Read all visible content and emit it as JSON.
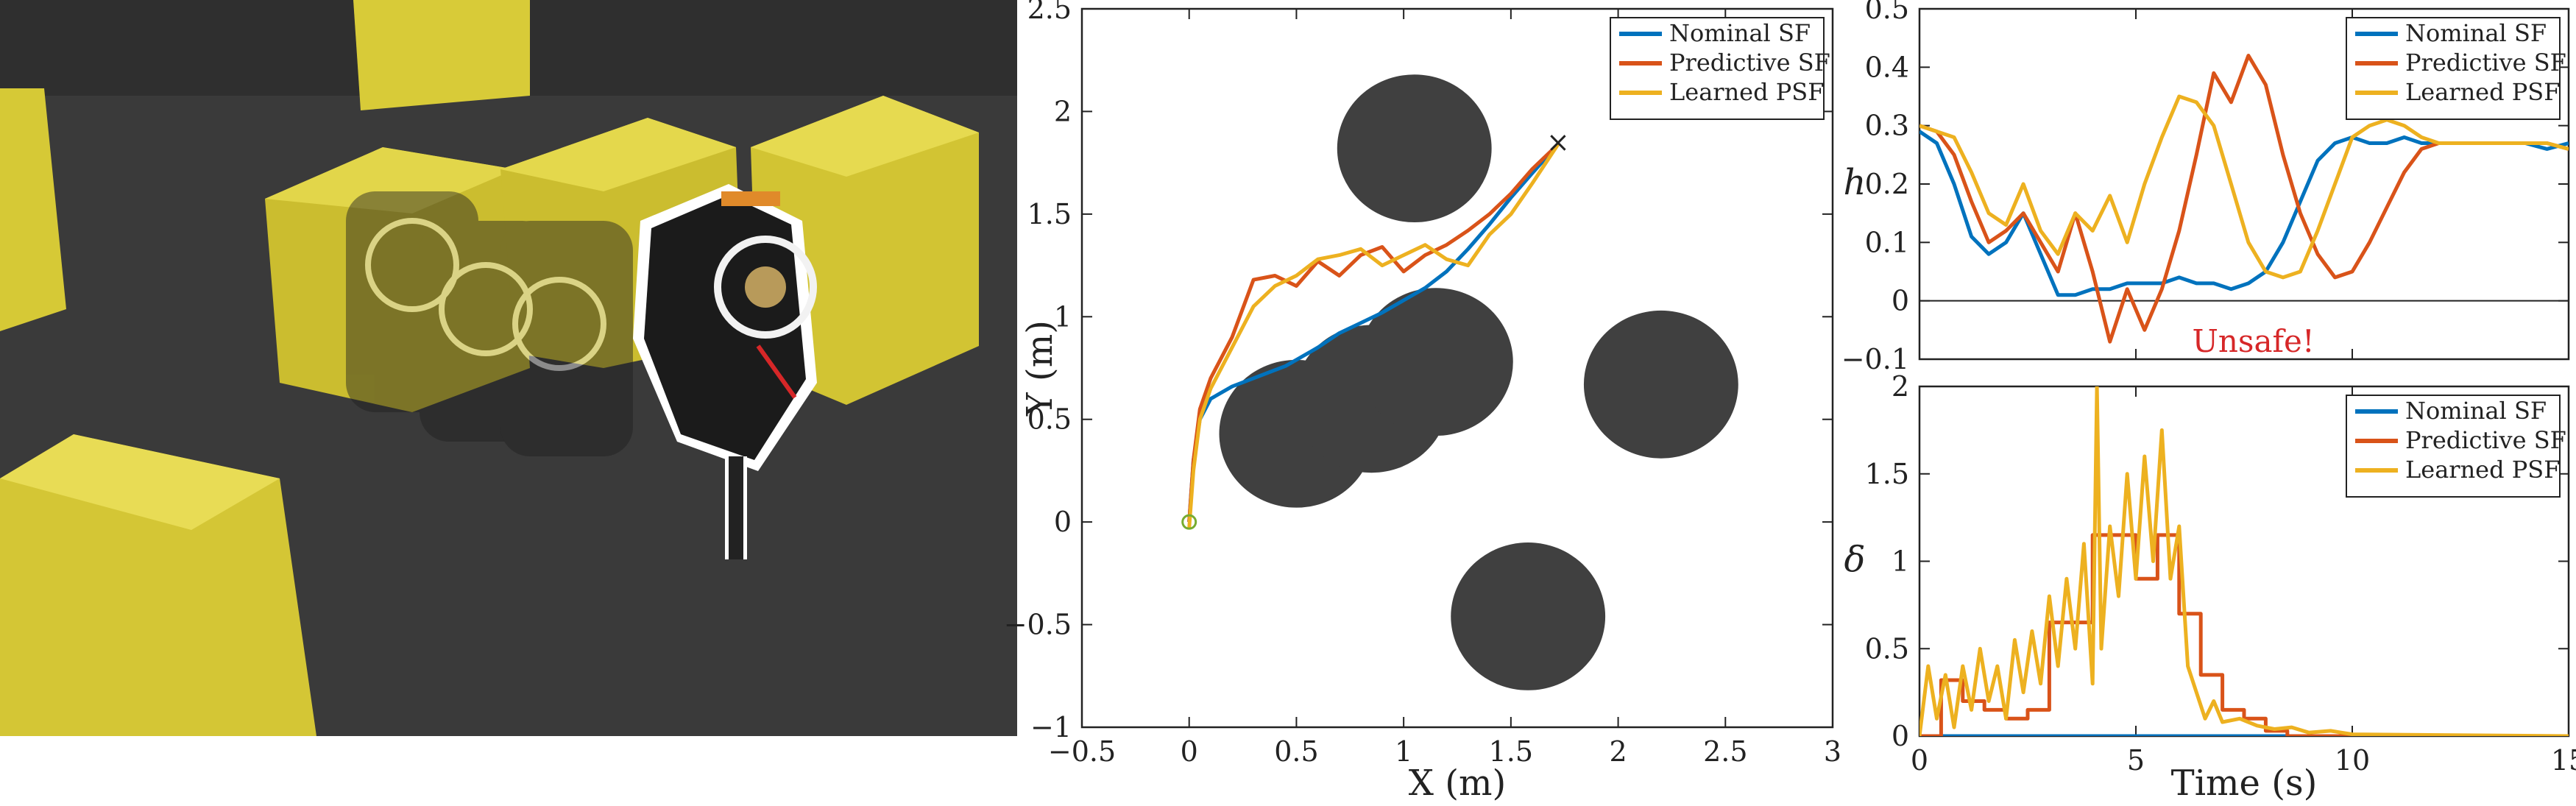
{
  "colors": {
    "nominal": "#0072BD",
    "predictive": "#D95319",
    "learned": "#EDB120",
    "obstacle": "#404040",
    "box": "#d6c936",
    "floor": "#3b3b3b"
  },
  "photo": {
    "icon": "hopping-robot-photo"
  },
  "chart_data": [
    {
      "type": "line",
      "xlabel": "X (m)",
      "ylabel": "Y (m)",
      "xlim": [
        -0.5,
        3
      ],
      "ylim": [
        -1,
        2.5
      ],
      "xticks": [
        "−0.5",
        "0",
        "0.5",
        "1",
        "1.5",
        "2",
        "2.5",
        "3"
      ],
      "yticks": [
        "−1",
        "−0.5",
        "0",
        "0.5",
        "1",
        "1.5",
        "2",
        "2.5"
      ],
      "legend_position": "top-right",
      "obstacles": [
        {
          "cx": 1.05,
          "cy": 1.82,
          "r": 0.36
        },
        {
          "cx": 0.5,
          "cy": 0.43,
          "r": 0.36
        },
        {
          "cx": 0.85,
          "cy": 0.6,
          "r": 0.36
        },
        {
          "cx": 1.15,
          "cy": 0.78,
          "r": 0.36
        },
        {
          "cx": 2.2,
          "cy": 0.67,
          "r": 0.36
        },
        {
          "cx": 1.58,
          "cy": -0.46,
          "r": 0.36
        }
      ],
      "start": {
        "x": 0,
        "y": 0,
        "label": "o"
      },
      "goal": {
        "x": 1.72,
        "y": 1.84,
        "label": "×"
      },
      "series": [
        {
          "name": "Nominal SF",
          "x": [
            0,
            0.02,
            0.05,
            0.1,
            0.2,
            0.3,
            0.45,
            0.6,
            0.7,
            0.8,
            0.9,
            1.0,
            1.1,
            1.2,
            1.3,
            1.4,
            1.5,
            1.6,
            1.72
          ],
          "y": [
            0,
            0.3,
            0.5,
            0.6,
            0.66,
            0.7,
            0.76,
            0.85,
            0.92,
            0.97,
            1.02,
            1.08,
            1.14,
            1.22,
            1.33,
            1.45,
            1.58,
            1.7,
            1.84
          ]
        },
        {
          "name": "Predictive SF",
          "x": [
            0,
            0.02,
            0.05,
            0.1,
            0.2,
            0.3,
            0.4,
            0.5,
            0.6,
            0.7,
            0.8,
            0.9,
            1.0,
            1.1,
            1.2,
            1.3,
            1.4,
            1.5,
            1.6,
            1.72
          ],
          "y": [
            0,
            0.3,
            0.55,
            0.7,
            0.9,
            1.18,
            1.2,
            1.15,
            1.27,
            1.2,
            1.3,
            1.34,
            1.22,
            1.3,
            1.35,
            1.42,
            1.5,
            1.6,
            1.72,
            1.84
          ]
        },
        {
          "name": "Learned PSF",
          "x": [
            0,
            0.02,
            0.05,
            0.1,
            0.2,
            0.3,
            0.4,
            0.5,
            0.6,
            0.7,
            0.8,
            0.9,
            1.0,
            1.1,
            1.2,
            1.3,
            1.4,
            1.5,
            1.6,
            1.72
          ],
          "y": [
            -0.03,
            0.25,
            0.5,
            0.65,
            0.85,
            1.05,
            1.15,
            1.2,
            1.28,
            1.3,
            1.33,
            1.25,
            1.3,
            1.35,
            1.28,
            1.25,
            1.4,
            1.5,
            1.65,
            1.84
          ]
        }
      ]
    },
    {
      "type": "line",
      "xlabel": "",
      "ylabel": "h",
      "xlim": [
        0,
        15
      ],
      "ylim": [
        -0.1,
        0.5
      ],
      "xticks": [
        "",
        "",
        "",
        ""
      ],
      "yticks": [
        "−0.1",
        "0",
        "0.1",
        "0.2",
        "0.3",
        "0.4",
        "0.5"
      ],
      "zero_line": true,
      "legend_position": "top-right",
      "annotation": {
        "text": "Unsafe!",
        "x": 6.3,
        "y": -0.07
      },
      "series": [
        {
          "name": "Nominal SF",
          "x": [
            0,
            0.4,
            0.8,
            1.2,
            1.6,
            2,
            2.4,
            2.8,
            3.2,
            3.6,
            4.0,
            4.4,
            4.8,
            5.2,
            5.6,
            6.0,
            6.4,
            6.8,
            7.2,
            7.6,
            8.0,
            8.4,
            8.8,
            9.2,
            9.6,
            10.0,
            10.4,
            10.8,
            11.2,
            11.6,
            12.0,
            12.5,
            13,
            13.5,
            14,
            14.5,
            15
          ],
          "y": [
            0.29,
            0.27,
            0.2,
            0.11,
            0.08,
            0.1,
            0.15,
            0.08,
            0.01,
            0.01,
            0.02,
            0.02,
            0.03,
            0.03,
            0.03,
            0.04,
            0.03,
            0.03,
            0.02,
            0.03,
            0.05,
            0.1,
            0.17,
            0.24,
            0.27,
            0.28,
            0.27,
            0.27,
            0.28,
            0.27,
            0.27,
            0.27,
            0.27,
            0.27,
            0.27,
            0.26,
            0.27
          ]
        },
        {
          "name": "Predictive SF",
          "x": [
            0,
            0.4,
            0.8,
            1.2,
            1.6,
            2,
            2.4,
            2.8,
            3.2,
            3.6,
            4.0,
            4.4,
            4.8,
            5.2,
            5.6,
            6.0,
            6.4,
            6.8,
            7.2,
            7.6,
            8.0,
            8.4,
            8.8,
            9.2,
            9.6,
            10.0,
            10.4,
            10.8,
            11.2,
            11.6,
            12.0,
            12.5,
            13,
            13.5,
            14,
            14.5,
            15
          ],
          "y": [
            0.3,
            0.29,
            0.25,
            0.17,
            0.1,
            0.12,
            0.15,
            0.1,
            0.05,
            0.15,
            0.05,
            -0.07,
            0.02,
            -0.05,
            0.02,
            0.12,
            0.25,
            0.39,
            0.34,
            0.42,
            0.37,
            0.25,
            0.15,
            0.08,
            0.04,
            0.05,
            0.1,
            0.16,
            0.22,
            0.26,
            0.27,
            0.27,
            0.27,
            0.27,
            0.27,
            0.27,
            0.26
          ]
        },
        {
          "name": "Learned PSF",
          "x": [
            0,
            0.4,
            0.8,
            1.2,
            1.6,
            2,
            2.4,
            2.8,
            3.2,
            3.6,
            4.0,
            4.4,
            4.8,
            5.2,
            5.6,
            6.0,
            6.4,
            6.8,
            7.2,
            7.6,
            8.0,
            8.4,
            8.8,
            9.2,
            9.6,
            10.0,
            10.4,
            10.8,
            11.2,
            11.6,
            12.0,
            12.5,
            13,
            13.5,
            14,
            14.5,
            15
          ],
          "y": [
            0.3,
            0.29,
            0.28,
            0.22,
            0.15,
            0.13,
            0.2,
            0.12,
            0.08,
            0.15,
            0.12,
            0.18,
            0.1,
            0.2,
            0.28,
            0.35,
            0.34,
            0.3,
            0.2,
            0.1,
            0.05,
            0.04,
            0.05,
            0.12,
            0.2,
            0.28,
            0.3,
            0.31,
            0.3,
            0.28,
            0.27,
            0.27,
            0.27,
            0.27,
            0.27,
            0.27,
            0.26
          ]
        }
      ]
    },
    {
      "type": "line",
      "xlabel": "Time (s)",
      "ylabel": "δ",
      "xlim": [
        0,
        15
      ],
      "ylim": [
        0,
        2
      ],
      "xticks": [
        "0",
        "5",
        "10",
        "15"
      ],
      "yticks": [
        "0",
        "0.5",
        "1",
        "1.5",
        "2"
      ],
      "legend_position": "top-right",
      "series": [
        {
          "name": "Nominal SF",
          "x": [
            0,
            15
          ],
          "y": [
            0,
            0
          ]
        },
        {
          "name": "Predictive SF",
          "x": [
            0,
            0.5,
            0.5,
            1.0,
            1.0,
            1.5,
            1.5,
            2.0,
            2.0,
            2.5,
            2.5,
            3.0,
            3.0,
            4.0,
            4.0,
            5.0,
            5.0,
            5.5,
            5.5,
            6.0,
            6.0,
            6.5,
            6.5,
            7.0,
            7.0,
            7.5,
            7.5,
            8.0,
            8.0,
            8.5,
            8.5,
            15
          ],
          "y": [
            0,
            0,
            0.32,
            0.32,
            0.2,
            0.2,
            0.15,
            0.15,
            0.1,
            0.1,
            0.15,
            0.15,
            0.65,
            0.65,
            1.15,
            1.15,
            0.9,
            0.9,
            1.15,
            1.15,
            0.7,
            0.7,
            0.35,
            0.35,
            0.15,
            0.15,
            0.1,
            0.1,
            0.03,
            0.03,
            0,
            0
          ]
        },
        {
          "name": "Learned PSF",
          "x": [
            0,
            0.2,
            0.4,
            0.6,
            0.8,
            1.0,
            1.2,
            1.4,
            1.6,
            1.8,
            2.0,
            2.2,
            2.4,
            2.6,
            2.8,
            3.0,
            3.2,
            3.4,
            3.6,
            3.8,
            4.0,
            4.1,
            4.2,
            4.4,
            4.6,
            4.8,
            5.0,
            5.2,
            5.4,
            5.6,
            5.8,
            6.0,
            6.2,
            6.4,
            6.6,
            6.8,
            7.0,
            7.4,
            7.8,
            8.2,
            8.6,
            9.0,
            9.5,
            10,
            15
          ],
          "y": [
            0,
            0.4,
            0.1,
            0.35,
            0.05,
            0.4,
            0.15,
            0.5,
            0.2,
            0.4,
            0.1,
            0.55,
            0.25,
            0.6,
            0.3,
            0.8,
            0.4,
            0.9,
            0.5,
            1.1,
            0.3,
            2.0,
            0.5,
            1.2,
            0.8,
            1.5,
            0.9,
            1.6,
            1.0,
            1.75,
            0.9,
            1.2,
            0.4,
            0.25,
            0.1,
            0.2,
            0.08,
            0.1,
            0.06,
            0.04,
            0.05,
            0.02,
            0.03,
            0.01,
            0
          ]
        }
      ]
    }
  ]
}
